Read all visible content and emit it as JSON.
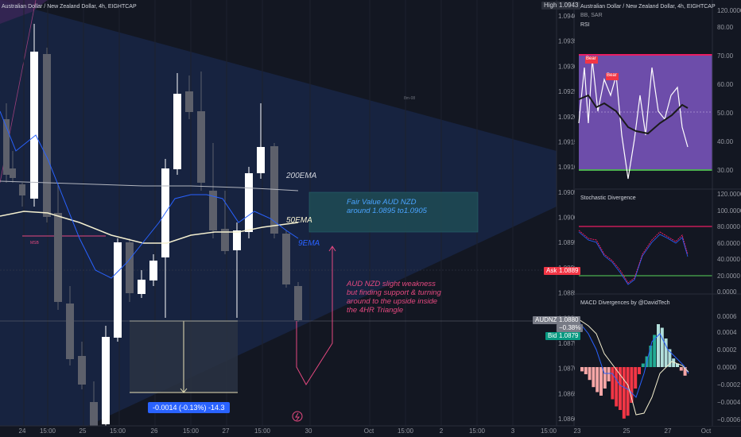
{
  "chart": {
    "title": "Australian Dollar / New Zealand Dollar, 4h, EIGHTCAP",
    "annotations": {
      "ema200": "200EMA",
      "ema50": "50EMA",
      "ema9": "9EMA",
      "fair_value": "Fair Value AUD NZD around 1.0895 to1.0905",
      "comment": "AUD NZD slight weakness but finding support & turning around to the upside inside the 4HR Triangle",
      "measure": "-0.0014 (-0.13%) -14.3",
      "msb": "MSB",
      "hidden_label": "8m-08"
    },
    "price_axis": [
      "1.0940",
      "1.0935",
      "1.0930",
      "1.0925",
      "1.0920",
      "1.0915",
      "1.0910",
      "1.0905",
      "1.0900",
      "1.0895",
      "1.0890",
      "1.0885",
      "1.0880",
      "1.0875",
      "1.0870",
      "1.0865",
      "1.0860"
    ],
    "price_tags": {
      "high_label": "High",
      "high_value": "1.0943",
      "ask_label": "Ask",
      "ask_value": "1.0889",
      "symbol_label": "AUDNZD",
      "symbol_value": "1.0880",
      "change": "−0.38%",
      "bid_label": "Bid",
      "bid_value": "1.0879"
    },
    "time_axis": [
      "24",
      "15:00",
      "25",
      "15:00",
      "26",
      "15:00",
      "27",
      "15:00",
      "30",
      "Oct",
      "15:00",
      "2",
      "15:00",
      "3",
      "15:00"
    ]
  },
  "side": {
    "title": "Australian Dollar / New Zealand Dollar, 4h, EIGHTCAP",
    "sub_title": "BB, SAR",
    "top_axis_label": "120.0000",
    "rsi": {
      "title": "RSI",
      "axis": [
        "80.00",
        "70.00",
        "60.00",
        "50.00",
        "40.00",
        "30.00"
      ],
      "bear_labels": [
        "Bear",
        "Bear"
      ]
    },
    "stoch": {
      "title": "Stochastic Divergence",
      "axis": [
        "120.0000",
        "100.0000",
        "80.0000",
        "60.0000",
        "40.0000",
        "20.0000",
        "0.0000"
      ]
    },
    "macd": {
      "title": "MACD Divergences by @DavidTech",
      "axis": [
        "0.0006",
        "0.0004",
        "0.0002",
        "0.0000",
        "−0.0002",
        "−0.0004",
        "−0.0006"
      ]
    },
    "time_axis": [
      "23",
      "25",
      "27",
      "Oct"
    ]
  },
  "colors": {
    "background": "#131722",
    "triangle": "#1a2744",
    "bull": "#ffffff",
    "bear": "#5d606b",
    "ema9": "#2962ff",
    "ema50": "#f5f0d0",
    "ema200": "#b2b5be",
    "fair_value_box": "#1f4c54",
    "comment": "#e64980",
    "rsi_bg": "#7e57c2",
    "measure": "#2962ff"
  }
}
